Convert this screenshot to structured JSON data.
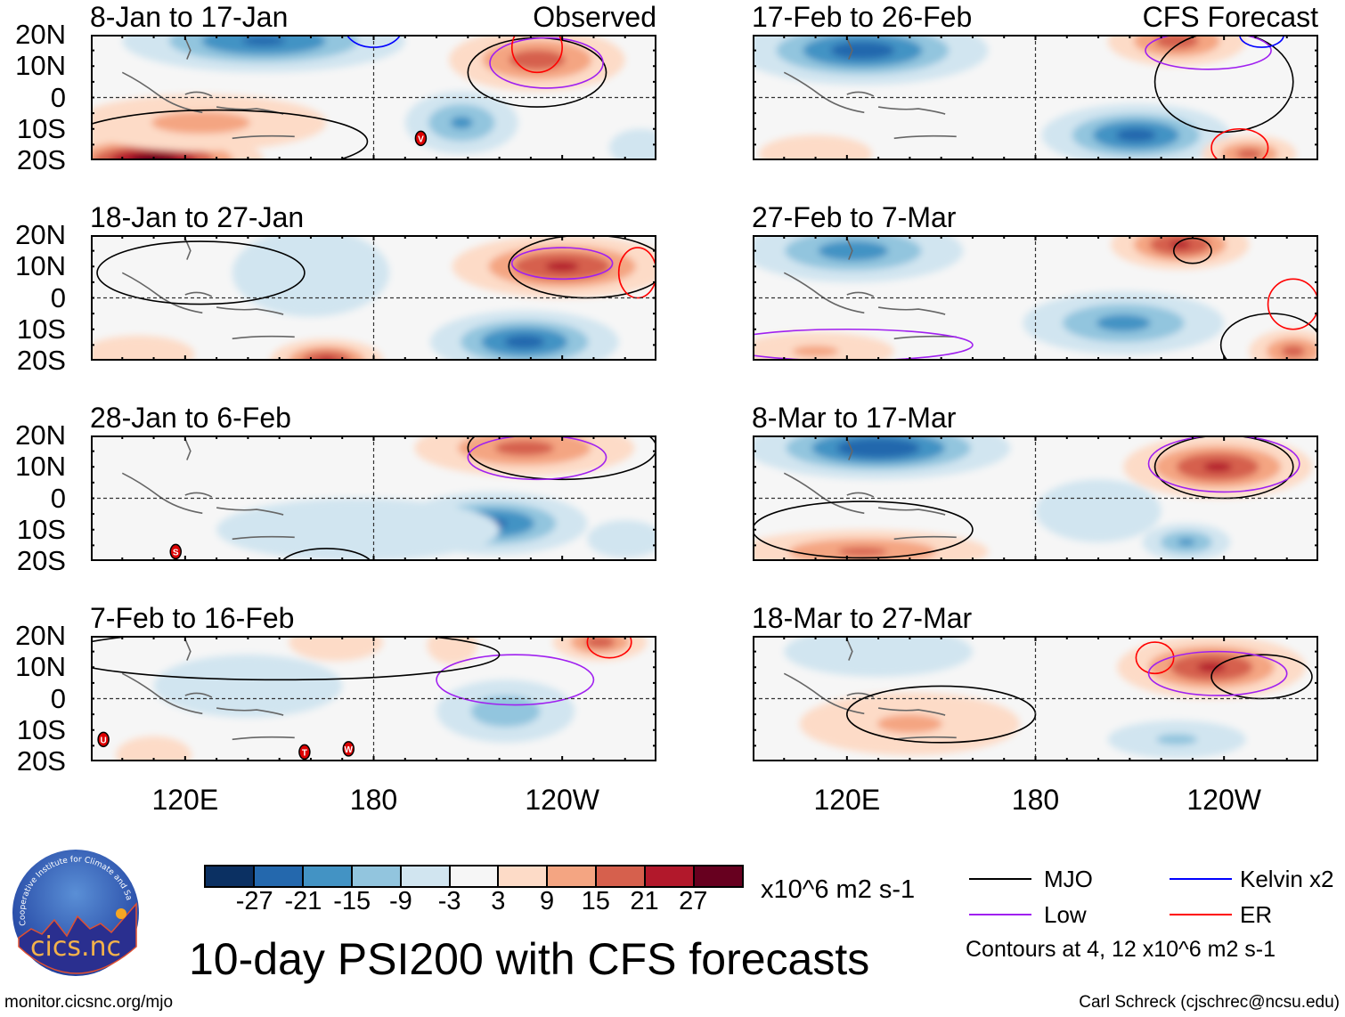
{
  "header": {
    "observed_label": "Observed",
    "forecast_label": "CFS Forecast"
  },
  "axes": {
    "lat_labels": [
      "20N",
      "10N",
      "0",
      "10S",
      "20S"
    ],
    "lat_values": [
      20,
      10,
      0,
      -10,
      -20
    ],
    "lon_labels": [
      "120E",
      "180",
      "120W"
    ],
    "lon_values": [
      120,
      180,
      240
    ],
    "lon_range": [
      90,
      270
    ],
    "lat_range": [
      -20,
      20
    ]
  },
  "colorbar": {
    "ticks": [
      "-27",
      "-21",
      "-15",
      "-9",
      "-3",
      "3",
      "9",
      "15",
      "21",
      "27"
    ],
    "colors": [
      "#0b3062",
      "#2468ad",
      "#4393c4",
      "#92c5de",
      "#d1e5f0",
      "#f6f6f6",
      "#fddbc7",
      "#f4a582",
      "#d6604d",
      "#b2182b",
      "#67001f"
    ],
    "units": "x10^6 m2 s-1"
  },
  "legend": {
    "items": [
      {
        "label": "MJO",
        "color": "#000000"
      },
      {
        "label": "Kelvin x2",
        "color": "#0000ff"
      },
      {
        "label": "Low",
        "color": "#a020f0"
      },
      {
        "label": "ER",
        "color": "#ff0000"
      }
    ],
    "note": "Contours at 4, 12 x10^6 m2 s-1"
  },
  "title": "10-day PSI200 with CFS forecasts",
  "logo": {
    "text": "cics.nc",
    "ring_text": "Cooperative Institute for Climate and Satellites"
  },
  "footer": {
    "left": "monitor.cicsnc.org/mjo",
    "right": "Carl Schreck (cjschrec@ncsu.edu)"
  },
  "chart_data": [
    {
      "type": "heatmap",
      "title": "8-Jan to 17-Jan",
      "source": "Observed",
      "anomalies": [
        {
          "lon": 145,
          "lat": 18,
          "w": 45,
          "h": 10,
          "v": -22
        },
        {
          "lon": 232,
          "lat": 12,
          "w": 28,
          "h": 10,
          "v": 18
        },
        {
          "lon": 110,
          "lat": -20,
          "w": 35,
          "h": 9,
          "v": 30
        },
        {
          "lon": 125,
          "lat": -8,
          "w": 40,
          "h": 9,
          "v": 11
        },
        {
          "lon": 208,
          "lat": -8,
          "w": 18,
          "h": 10,
          "v": -16
        },
        {
          "lon": 265,
          "lat": -16,
          "w": 10,
          "h": 6,
          "v": -8
        }
      ],
      "contours": [
        {
          "kind": "MJO",
          "lon": 232,
          "lat": 8,
          "w": 22,
          "h": 11
        },
        {
          "kind": "Low",
          "lon": 235,
          "lat": 11,
          "w": 18,
          "h": 8
        },
        {
          "kind": "ER",
          "lon": 232,
          "lat": 16,
          "w": 8,
          "h": 8
        },
        {
          "kind": "Kelvin x2",
          "lon": 180,
          "lat": 22,
          "w": 9,
          "h": 6
        },
        {
          "kind": "MJO",
          "lon": 130,
          "lat": -14,
          "w": 48,
          "h": 10
        }
      ],
      "storm_labels": [
        "V"
      ]
    },
    {
      "type": "heatmap",
      "title": "18-Jan to 27-Jan",
      "source": "Observed",
      "anomalies": [
        {
          "lon": 240,
          "lat": 10,
          "w": 35,
          "h": 10,
          "v": 22
        },
        {
          "lon": 228,
          "lat": -14,
          "w": 30,
          "h": 10,
          "v": -23
        },
        {
          "lon": 165,
          "lat": -20,
          "w": 18,
          "h": 7,
          "v": 22
        },
        {
          "lon": 160,
          "lat": 8,
          "w": 25,
          "h": 14,
          "v": -5
        },
        {
          "lon": 105,
          "lat": -18,
          "w": 18,
          "h": 6,
          "v": 8
        }
      ],
      "contours": [
        {
          "kind": "MJO",
          "lon": 248,
          "lat": 10,
          "w": 25,
          "h": 10
        },
        {
          "kind": "Low",
          "lon": 240,
          "lat": 11,
          "w": 16,
          "h": 5
        },
        {
          "kind": "MJO",
          "lon": 125,
          "lat": 8,
          "w": 33,
          "h": 10
        },
        {
          "kind": "ER",
          "lon": 264,
          "lat": 8,
          "w": 6,
          "h": 8
        }
      ],
      "storm_labels": []
    },
    {
      "type": "heatmap",
      "title": "28-Jan to 6-Feb",
      "source": "Observed",
      "anomalies": [
        {
          "lon": 228,
          "lat": 16,
          "w": 35,
          "h": 9,
          "v": 17
        },
        {
          "lon": 218,
          "lat": -8,
          "w": 30,
          "h": 10,
          "v": -22
        },
        {
          "lon": 175,
          "lat": -10,
          "w": 45,
          "h": 10,
          "v": -6
        },
        {
          "lon": 260,
          "lat": -13,
          "w": 12,
          "h": 6,
          "v": -8
        }
      ],
      "contours": [
        {
          "kind": "MJO",
          "lon": 240,
          "lat": 16,
          "w": 30,
          "h": 10
        },
        {
          "kind": "Low",
          "lon": 232,
          "lat": 13,
          "w": 22,
          "h": 7
        },
        {
          "kind": "MJO",
          "lon": 165,
          "lat": -22,
          "w": 15,
          "h": 6
        }
      ],
      "storm_labels": [
        "S"
      ]
    },
    {
      "type": "heatmap",
      "title": "7-Feb to 16-Feb",
      "source": "Observed",
      "anomalies": [
        {
          "lon": 222,
          "lat": -4,
          "w": 22,
          "h": 10,
          "v": -13
        },
        {
          "lon": 140,
          "lat": 4,
          "w": 30,
          "h": 10,
          "v": -8
        },
        {
          "lon": 168,
          "lat": 18,
          "w": 15,
          "h": 6,
          "v": 9
        },
        {
          "lon": 252,
          "lat": 18,
          "w": 15,
          "h": 6,
          "v": 18
        },
        {
          "lon": 205,
          "lat": 17,
          "w": 8,
          "h": 6,
          "v": 9
        },
        {
          "lon": 110,
          "lat": -18,
          "w": 12,
          "h": 6,
          "v": 4
        }
      ],
      "contours": [
        {
          "kind": "Low",
          "lon": 225,
          "lat": 6,
          "w": 25,
          "h": 8
        },
        {
          "kind": "ER",
          "lon": 255,
          "lat": 18,
          "w": 7,
          "h": 5
        },
        {
          "kind": "MJO",
          "lon": 150,
          "lat": 14,
          "w": 70,
          "h": 8
        }
      ],
      "storm_labels": [
        "U",
        "T",
        "W"
      ]
    },
    {
      "type": "heatmap",
      "title": "17-Feb to 26-Feb",
      "source": "CFS Forecast",
      "anomalies": [
        {
          "lon": 125,
          "lat": 15,
          "w": 40,
          "h": 11,
          "v": -24
        },
        {
          "lon": 212,
          "lat": -12,
          "w": 30,
          "h": 10,
          "v": -23
        },
        {
          "lon": 225,
          "lat": 18,
          "w": 22,
          "h": 8,
          "v": 18
        },
        {
          "lon": 248,
          "lat": -18,
          "w": 15,
          "h": 6,
          "v": 17
        },
        {
          "lon": 110,
          "lat": -18,
          "w": 18,
          "h": 6,
          "v": 6
        }
      ],
      "contours": [
        {
          "kind": "MJO",
          "lon": 240,
          "lat": 5,
          "w": 22,
          "h": 16
        },
        {
          "kind": "Low",
          "lon": 235,
          "lat": 15,
          "w": 20,
          "h": 6
        },
        {
          "kind": "Kelvin x2",
          "lon": 252,
          "lat": 20,
          "w": 7,
          "h": 4
        },
        {
          "kind": "ER",
          "lon": 245,
          "lat": -16,
          "w": 9,
          "h": 6
        }
      ],
      "storm_labels": []
    },
    {
      "type": "heatmap",
      "title": "27-Feb to 7-Mar",
      "source": "CFS Forecast",
      "anomalies": [
        {
          "lon": 122,
          "lat": 15,
          "w": 35,
          "h": 10,
          "v": -18
        },
        {
          "lon": 208,
          "lat": -8,
          "w": 32,
          "h": 10,
          "v": -17
        },
        {
          "lon": 226,
          "lat": 17,
          "w": 22,
          "h": 8,
          "v": 22
        },
        {
          "lon": 262,
          "lat": -17,
          "w": 14,
          "h": 7,
          "v": 17
        },
        {
          "lon": 110,
          "lat": -17,
          "w": 25,
          "h": 6,
          "v": 10
        }
      ],
      "contours": [
        {
          "kind": "MJO",
          "lon": 230,
          "lat": 15,
          "w": 6,
          "h": 4
        },
        {
          "kind": "MJO",
          "lon": 255,
          "lat": -15,
          "w": 16,
          "h": 10
        },
        {
          "kind": "ER",
          "lon": 262,
          "lat": -2,
          "w": 8,
          "h": 8
        },
        {
          "kind": "Low",
          "lon": 120,
          "lat": -15,
          "w": 40,
          "h": 5
        }
      ],
      "storm_labels": []
    },
    {
      "type": "heatmap",
      "title": "8-Mar to 17-Mar",
      "source": "CFS Forecast",
      "anomalies": [
        {
          "lon": 130,
          "lat": 16,
          "w": 42,
          "h": 10,
          "v": -26
        },
        {
          "lon": 238,
          "lat": 10,
          "w": 30,
          "h": 10,
          "v": 22
        },
        {
          "lon": 125,
          "lat": -17,
          "w": 40,
          "h": 7,
          "v": 16
        },
        {
          "lon": 200,
          "lat": -4,
          "w": 20,
          "h": 10,
          "v": -9
        },
        {
          "lon": 228,
          "lat": -14,
          "w": 14,
          "h": 6,
          "v": -16
        }
      ],
      "contours": [
        {
          "kind": "MJO",
          "lon": 240,
          "lat": 10,
          "w": 22,
          "h": 10
        },
        {
          "kind": "Low",
          "lon": 240,
          "lat": 11,
          "w": 24,
          "h": 9
        },
        {
          "kind": "MJO",
          "lon": 125,
          "lat": -10,
          "w": 35,
          "h": 9
        }
      ],
      "storm_labels": []
    },
    {
      "type": "heatmap",
      "title": "18-Mar to 27-Mar",
      "source": "CFS Forecast",
      "anomalies": [
        {
          "lon": 236,
          "lat": 10,
          "w": 30,
          "h": 10,
          "v": 22
        },
        {
          "lon": 140,
          "lat": -8,
          "w": 35,
          "h": 10,
          "v": 10
        },
        {
          "lon": 225,
          "lat": -13,
          "w": 22,
          "h": 6,
          "v": -10
        },
        {
          "lon": 130,
          "lat": 15,
          "w": 30,
          "h": 8,
          "v": -5
        }
      ],
      "contours": [
        {
          "kind": "MJO",
          "lon": 252,
          "lat": 7,
          "w": 16,
          "h": 7
        },
        {
          "kind": "ER",
          "lon": 218,
          "lat": 13,
          "w": 6,
          "h": 5
        },
        {
          "kind": "Low",
          "lon": 238,
          "lat": 8,
          "w": 22,
          "h": 7
        },
        {
          "kind": "MJO",
          "lon": 150,
          "lat": -5,
          "w": 30,
          "h": 9
        }
      ],
      "storm_labels": []
    }
  ]
}
